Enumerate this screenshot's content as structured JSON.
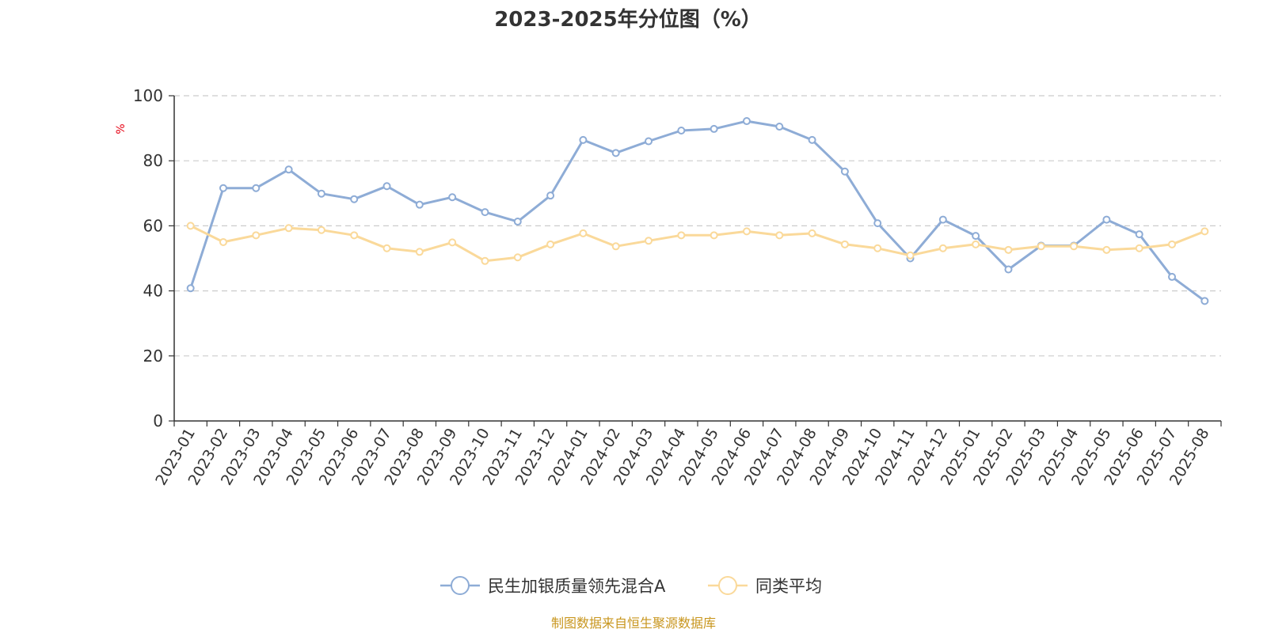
{
  "chart_data": {
    "type": "line",
    "title": "2023-2025年分位图（%）",
    "ylabel": "%",
    "xlabel": "",
    "ylim": [
      0,
      100
    ],
    "yticks": [
      0,
      20,
      40,
      60,
      80,
      100
    ],
    "grid": true,
    "legend_position": "bottom-center",
    "categories": [
      "2023-01",
      "2023-02",
      "2023-03",
      "2023-04",
      "2023-05",
      "2023-06",
      "2023-07",
      "2023-08",
      "2023-09",
      "2023-10",
      "2023-11",
      "2023-12",
      "2024-01",
      "2024-02",
      "2024-03",
      "2024-04",
      "2024-05",
      "2024-06",
      "2024-07",
      "2024-08",
      "2024-09",
      "2024-10",
      "2024-11",
      "2024-12",
      "2025-01",
      "2025-02",
      "2025-03",
      "2025-04",
      "2025-05",
      "2025-06",
      "2025-07",
      "2025-08"
    ],
    "series": [
      {
        "name": "民生加银质量领先混合A",
        "color": "#8eacd6",
        "values": [
          40.8,
          71.6,
          71.6,
          77.3,
          69.9,
          68.2,
          72.2,
          66.5,
          68.8,
          64.2,
          61.3,
          69.3,
          86.4,
          82.4,
          86.0,
          89.3,
          89.8,
          92.2,
          90.5,
          86.4,
          76.7,
          60.8,
          50.0,
          61.9,
          56.9,
          46.6,
          53.9,
          53.9,
          61.9,
          57.4,
          44.3,
          36.9
        ]
      },
      {
        "name": "同类平均",
        "color": "#fad99a",
        "values": [
          60.0,
          55.0,
          57.1,
          59.3,
          58.7,
          57.1,
          53.1,
          52.0,
          54.9,
          49.2,
          50.3,
          54.3,
          57.7,
          53.7,
          55.4,
          57.1,
          57.1,
          58.3,
          57.1,
          57.7,
          54.3,
          53.1,
          50.9,
          53.1,
          54.3,
          52.6,
          53.7,
          53.7,
          52.6,
          53.1,
          54.3,
          58.3
        ]
      }
    ]
  },
  "footer": {
    "source": "制图数据来自恒生聚源数据库"
  }
}
